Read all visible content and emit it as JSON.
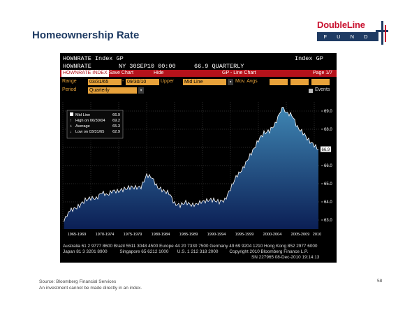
{
  "slide": {
    "title": "Homeownership Rate",
    "source": "Source: Bloomberg Financial Services",
    "disclaimer": "An investment cannot be made directly in an index.",
    "page_number": "58"
  },
  "logo": {
    "word": "DoubleLine",
    "sub": "F U N D S"
  },
  "terminal": {
    "line1": "HOWNRATE Index GP",
    "line1_right": "Index GP",
    "line2_left": "HOWNRATE",
    "line2_mid": "NY 30SEP10 00:00",
    "line2_value": "66.9 QUARTERLY",
    "menu": {
      "index": "HOWNRATE INDEX",
      "save": "Save Chart",
      "hide": "Hide",
      "center": "GP - Line Chart",
      "page": "Page 1/7"
    },
    "range_label": "Range",
    "range_start": "03/31/65",
    "range_end": "09/30/10",
    "upper_label": "Upper",
    "upper_value": "Mid Line",
    "mov_label": "Mov. Avgs",
    "period_label": "Period",
    "period_value": "Quarterly",
    "events_label": "Events",
    "footer1": "Australia 61 2 9777 8600 Brazil 5511 3048 4500 Europe 44 20 7330 7500 Germany 49 69 9204 1210 Hong Kong 852 2977 6000",
    "footer2": "Japan 81 3 3201 8900          Singapore 65 6212 1000       U.S. 1 212 318 2000         Copyright 2010 Bloomberg Finance L.P.",
    "footer3": "SN 227965 08-Dec-2010 19:14:13"
  },
  "legend": {
    "mid": "Mid Line",
    "mid_val": "66.9",
    "high": "High on 06/30/04",
    "high_val": "69.2",
    "avg": "Average",
    "avg_val": "65.3",
    "low": "Low on 03/31/65",
    "low_val": "62.9"
  },
  "colors": {
    "accent_red": "#b5121b",
    "field_orange": "#e8a23a",
    "area_top": "#2f6f9a",
    "area_bottom": "#0a1a4a"
  },
  "chart_data": {
    "type": "area",
    "title": "",
    "xlabel": "",
    "ylabel": "",
    "ylim": [
      62.5,
      69.5
    ],
    "yticks": [
      63.0,
      64.0,
      65.0,
      66.0,
      67.0,
      68.0,
      69.0
    ],
    "ytick_labels": [
      "63.0",
      "64.0",
      "65.0",
      "66.0",
      "",
      "68.0",
      "69.0"
    ],
    "last_value_label": "66.9",
    "x_ticks": [
      "1965-1969",
      "1970-1974",
      "1975-1979",
      "1980-1984",
      "1985-1989",
      "1990-1994",
      "1995-1999",
      "2000-2004",
      "2005-2009",
      "2010"
    ],
    "x_years": [
      1965.2,
      1966,
      1967,
      1968,
      1969,
      1970,
      1971,
      1972,
      1973,
      1974,
      1975,
      1976,
      1977,
      1978,
      1979,
      1980,
      1981,
      1982,
      1983,
      1984,
      1985,
      1986,
      1987,
      1988,
      1989,
      1990,
      1991,
      1992,
      1993,
      1994,
      1995,
      1996,
      1997,
      1998,
      1999,
      2000,
      2001,
      2002,
      2003,
      2004,
      2004.5,
      2005,
      2006,
      2007,
      2008,
      2009,
      2010,
      2010.75
    ],
    "values": [
      62.9,
      63.5,
      63.6,
      63.8,
      64.1,
      64.2,
      64.2,
      64.5,
      64.4,
      64.6,
      64.6,
      64.7,
      64.8,
      64.8,
      64.8,
      65.5,
      65.3,
      64.8,
      64.6,
      64.5,
      63.9,
      63.8,
      64.0,
      63.8,
      63.9,
      64.0,
      64.1,
      64.1,
      64.0,
      64.1,
      64.7,
      65.4,
      65.7,
      66.3,
      66.8,
      67.4,
      67.8,
      67.9,
      68.3,
      69.0,
      69.2,
      68.9,
      68.8,
      68.1,
      67.8,
      67.4,
      67.1,
      66.9
    ]
  }
}
